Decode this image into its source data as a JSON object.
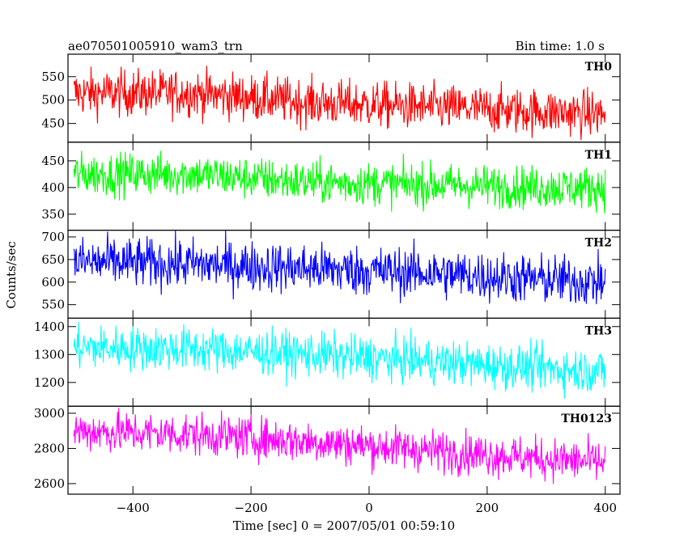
{
  "header": {
    "title": "ae070501005910_wam3_trn",
    "bin_time": "Bin time: 1.0 s"
  },
  "chart_data": {
    "type": "line",
    "xlabel": "Time [sec] 0 = 2007/05/01 00:59:10",
    "ylabel": "Counts/sec",
    "xlim": [
      -510,
      425
    ],
    "x_ticks": [
      -400,
      -200,
      0,
      200,
      400
    ],
    "x_tick_labels": [
      "−400",
      "−200",
      "0",
      "200",
      "400"
    ],
    "x_range": [
      -500,
      400
    ],
    "bin_time_s": 1.0,
    "panels": [
      {
        "name": "TH0",
        "color": "#ff0000",
        "ylim": [
          410,
          598
        ],
        "ticks": [
          450,
          500,
          550
        ],
        "trend": [
          [
            -500,
            515
          ],
          [
            -300,
            515
          ],
          [
            -100,
            495
          ],
          [
            100,
            485
          ],
          [
            300,
            475
          ],
          [
            400,
            470
          ]
        ],
        "noise": 25,
        "data_min": 410,
        "data_max": 598
      },
      {
        "name": "TH1",
        "color": "#00ff00",
        "ylim": [
          320,
          485
        ],
        "ticks": [
          350,
          400,
          450
        ],
        "trend": [
          [
            -500,
            425
          ],
          [
            -300,
            425
          ],
          [
            -100,
            410
          ],
          [
            100,
            405
          ],
          [
            300,
            400
          ],
          [
            400,
            400
          ]
        ],
        "noise": 20,
        "data_min": 320,
        "data_max": 485
      },
      {
        "name": "TH2",
        "color": "#0000ff",
        "ylim": [
          520,
          715
        ],
        "ticks": [
          550,
          600,
          650,
          700
        ],
        "trend": [
          [
            -500,
            645
          ],
          [
            -300,
            640
          ],
          [
            -100,
            630
          ],
          [
            100,
            620
          ],
          [
            300,
            605
          ],
          [
            400,
            600
          ]
        ],
        "noise": 28,
        "data_min": 525,
        "data_max": 715
      },
      {
        "name": "TH3",
        "color": "#00ffff",
        "ylim": [
          1115,
          1430
        ],
        "ticks": [
          1200,
          1300,
          1400
        ],
        "trend": [
          [
            -500,
            1325
          ],
          [
            -300,
            1320
          ],
          [
            -100,
            1300
          ],
          [
            100,
            1275
          ],
          [
            300,
            1250
          ],
          [
            400,
            1240
          ]
        ],
        "noise": 40,
        "data_min": 1130,
        "data_max": 1430
      },
      {
        "name": "TH0123",
        "color": "#ff00ff",
        "ylim": [
          2540,
          3040
        ],
        "ticks": [
          2600,
          2800,
          3000
        ],
        "trend": [
          [
            -500,
            2900
          ],
          [
            -300,
            2880
          ],
          [
            -100,
            2840
          ],
          [
            100,
            2790
          ],
          [
            300,
            2740
          ],
          [
            400,
            2720
          ]
        ],
        "noise": 60,
        "data_min": 2550,
        "data_max": 3040
      }
    ]
  }
}
